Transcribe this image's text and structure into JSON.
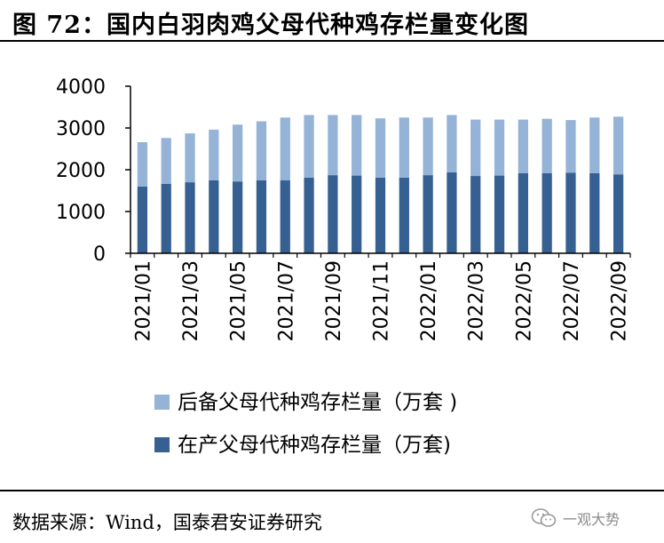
{
  "figure": {
    "title": "图 72：国内白羽肉鸡父母代种鸡存栏量变化图",
    "source": "数据来源：Wind，国泰君安证券研究",
    "watermark": "一观大势"
  },
  "colors": {
    "reserve": "#95b3d7",
    "production": "#366092",
    "axis": "#000000"
  },
  "chart_data": {
    "type": "bar",
    "stacked": true,
    "title": "",
    "xlabel": "",
    "ylabel": "",
    "ylim": [
      0,
      4000
    ],
    "yticks": [
      0,
      1000,
      2000,
      3000,
      4000
    ],
    "categories": [
      "2021/01",
      "2021/02",
      "2021/03",
      "2021/04",
      "2021/05",
      "2021/06",
      "2021/07",
      "2021/08",
      "2021/09",
      "2021/10",
      "2021/11",
      "2021/12",
      "2022/01",
      "2022/02",
      "2022/03",
      "2022/04",
      "2022/05",
      "2022/06",
      "2022/07",
      "2022/08",
      "2022/09"
    ],
    "x_tick_labels": [
      "2021/01",
      "2021/03",
      "2021/05",
      "2021/07",
      "2021/09",
      "2021/11",
      "2022/01",
      "2022/03",
      "2022/05",
      "2022/07",
      "2022/09"
    ],
    "series": [
      {
        "name": "在产父母代种鸡存栏量（万套)",
        "values": [
          1600,
          1660,
          1700,
          1750,
          1720,
          1750,
          1750,
          1810,
          1870,
          1860,
          1810,
          1810,
          1870,
          1940,
          1850,
          1860,
          1920,
          1920,
          1930,
          1920,
          1890
        ]
      },
      {
        "name": "后备父母代种鸡存栏量（万套 )",
        "values": [
          1060,
          1100,
          1170,
          1210,
          1360,
          1410,
          1500,
          1500,
          1440,
          1450,
          1420,
          1440,
          1380,
          1370,
          1350,
          1340,
          1280,
          1300,
          1260,
          1330,
          1380
        ]
      }
    ],
    "legend": [
      {
        "label": "后备父母代种鸡存栏量（万套 )",
        "series_index": 1
      },
      {
        "label": "在产父母代种鸡存栏量（万套)",
        "series_index": 0
      }
    ],
    "legend_position": "bottom",
    "grid": false
  }
}
